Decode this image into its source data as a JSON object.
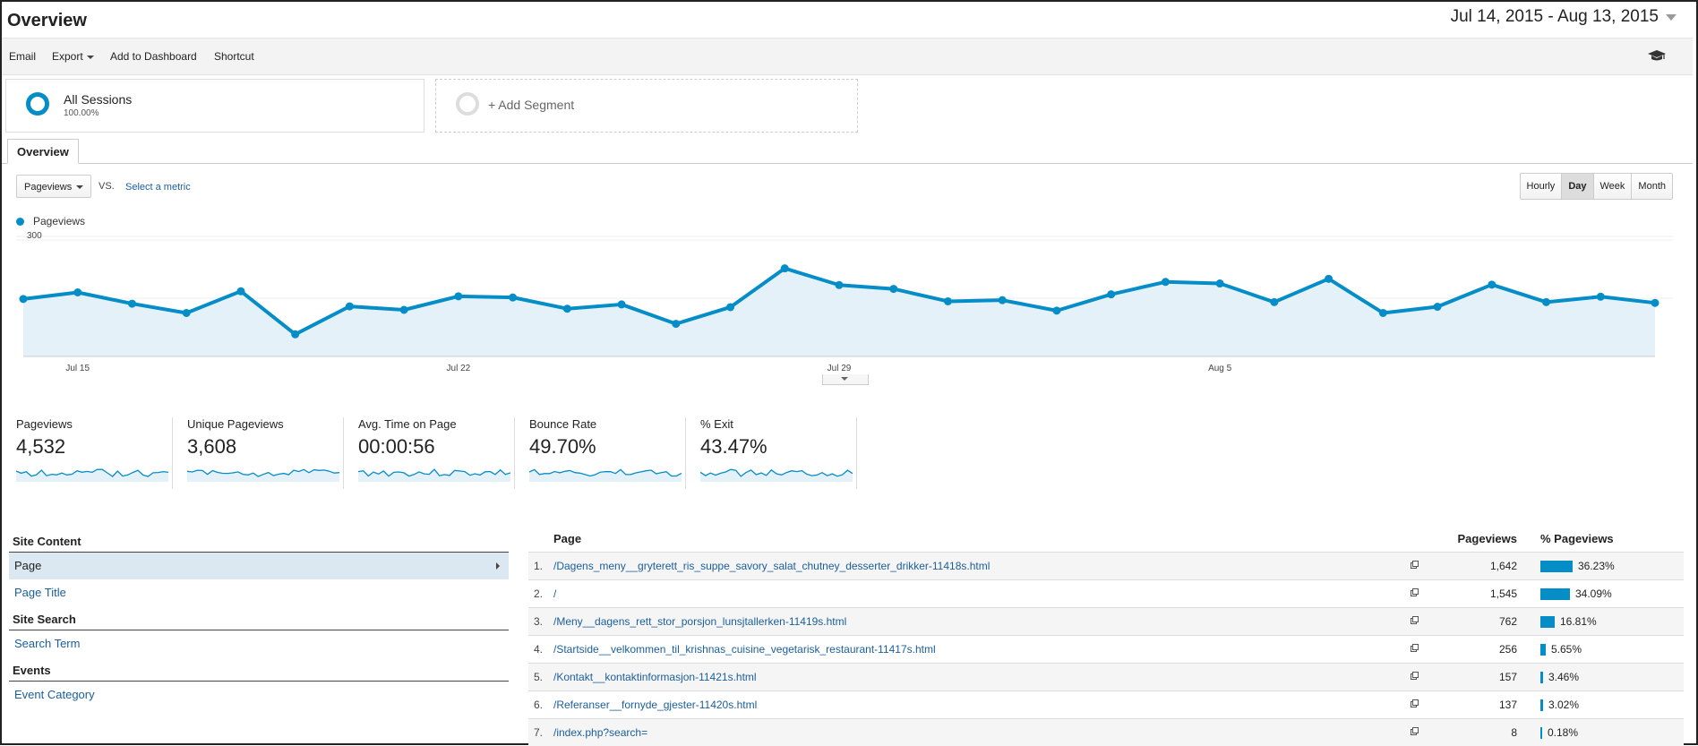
{
  "header": {
    "title": "Overview",
    "date_range": "Jul 14, 2015 - Aug 13, 2015"
  },
  "toolbar": {
    "email": "Email",
    "export": "Export",
    "add_to_dashboard": "Add to Dashboard",
    "shortcut": "Shortcut",
    "icon": "graduation-cap-icon"
  },
  "segments": {
    "all_sessions": {
      "name": "All Sessions",
      "pct": "100.00%"
    },
    "add_segment": "+ Add Segment"
  },
  "tabs": {
    "overview": "Overview"
  },
  "chart_controls": {
    "metric": "Pageviews",
    "vs": "VS.",
    "select_metric": "Select a metric",
    "granularity": [
      "Hourly",
      "Day",
      "Week",
      "Month"
    ],
    "active_granularity": "Day"
  },
  "legend": {
    "series": "Pageviews"
  },
  "chart_data": {
    "type": "area",
    "series": [
      {
        "name": "Pageviews",
        "color": "#058dc7",
        "values": [
          148,
          165,
          136,
          112,
          168,
          57,
          129,
          120,
          155,
          152,
          123,
          134,
          84,
          127,
          227,
          184,
          174,
          142,
          145,
          118,
          160,
          192,
          188,
          140,
          200,
          112,
          128,
          185,
          140,
          154,
          138
        ]
      }
    ],
    "x_ticks": [
      {
        "index": 1,
        "label": "Jul 15"
      },
      {
        "index": 8,
        "label": "Jul 22"
      },
      {
        "index": 15,
        "label": "Jul 29"
      },
      {
        "index": 22,
        "label": "Aug 5"
      }
    ],
    "y_ticks": [
      150,
      300
    ],
    "ylim": [
      0,
      300
    ]
  },
  "scorecards": [
    {
      "label": "Pageviews",
      "value": "4,532"
    },
    {
      "label": "Unique Pageviews",
      "value": "3,608"
    },
    {
      "label": "Avg. Time on Page",
      "value": "00:00:56"
    },
    {
      "label": "Bounce Rate",
      "value": "49.70%"
    },
    {
      "label": "% Exit",
      "value": "43.47%"
    }
  ],
  "sidebar": {
    "site_content": "Site Content",
    "page": "Page",
    "page_title": "Page Title",
    "site_search": "Site Search",
    "search_term": "Search Term",
    "events": "Events",
    "event_category": "Event Category"
  },
  "table": {
    "headers": {
      "page": "Page",
      "pageviews": "Pageviews",
      "pct_pageviews": "% Pageviews"
    },
    "rows": [
      {
        "num": "1.",
        "page": "/Dagens_meny__gryterett_ris_suppe_savory_salat_chutney_desserter_drikker-11418s.html",
        "pageviews": "1,642",
        "pct": "36.23%",
        "share": 0.3623
      },
      {
        "num": "2.",
        "page": "/",
        "pageviews": "1,545",
        "pct": "34.09%",
        "share": 0.3409
      },
      {
        "num": "3.",
        "page": "/Meny__dagens_rett_stor_porsjon_lunsjtallerken-11419s.html",
        "pageviews": "762",
        "pct": "16.81%",
        "share": 0.1681
      },
      {
        "num": "4.",
        "page": "/Startside__velkommen_til_krishnas_cuisine_vegetarisk_restaurant-11417s.html",
        "pageviews": "256",
        "pct": "5.65%",
        "share": 0.0565
      },
      {
        "num": "5.",
        "page": "/Kontakt__kontaktinformasjon-11421s.html",
        "pageviews": "157",
        "pct": "3.46%",
        "share": 0.0346
      },
      {
        "num": "6.",
        "page": "/Referanser__fornyde_gjester-11420s.html",
        "pageviews": "137",
        "pct": "3.02%",
        "share": 0.0302
      },
      {
        "num": "7.",
        "page": "/index.php?search=",
        "pageviews": "8",
        "pct": "0.18%",
        "share": 0.0018
      }
    ]
  }
}
